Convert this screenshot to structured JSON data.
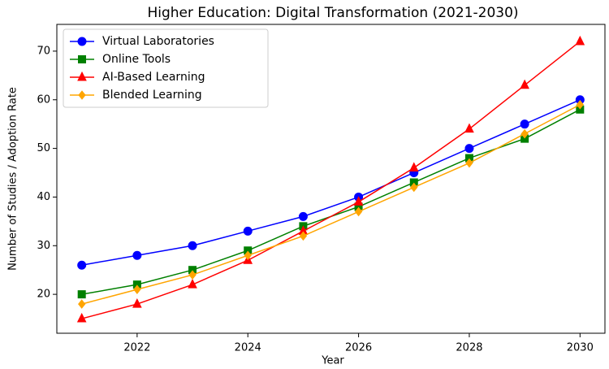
{
  "chart_data": {
    "type": "line",
    "title": "Higher Education: Digital Transformation (2021-2030)",
    "x_label": "Year",
    "y_label": "Number of Studies / Adoption Rate",
    "x": [
      2021,
      2022,
      2023,
      2024,
      2025,
      2026,
      2027,
      2028,
      2029,
      2030
    ],
    "series": [
      {
        "name": "Virtual Laboratories",
        "color": "#0000ff",
        "marker": "circle",
        "values": [
          26,
          28,
          30,
          33,
          36,
          40,
          45,
          50,
          55,
          60
        ]
      },
      {
        "name": "Online Tools",
        "color": "#008000",
        "marker": "square",
        "values": [
          20,
          22,
          25,
          29,
          34,
          38,
          43,
          48,
          52,
          58
        ]
      },
      {
        "name": "AI-Based Learning",
        "color": "#ff0000",
        "marker": "triangle",
        "values": [
          15,
          18,
          22,
          27,
          33,
          39,
          46,
          54,
          63,
          72
        ]
      },
      {
        "name": "Blended Learning",
        "color": "#ffa500",
        "marker": "diamond",
        "values": [
          18,
          21,
          24,
          28,
          32,
          37,
          42,
          47,
          53,
          59
        ]
      }
    ],
    "xlim": [
      2020.55,
      2030.45
    ],
    "ylim": [
      12,
      75.5
    ],
    "xticks": [
      2022,
      2024,
      2026,
      2028,
      2030
    ],
    "yticks": [
      20,
      30,
      40,
      50,
      60,
      70
    ],
    "grid": false,
    "legend": "upper left"
  }
}
